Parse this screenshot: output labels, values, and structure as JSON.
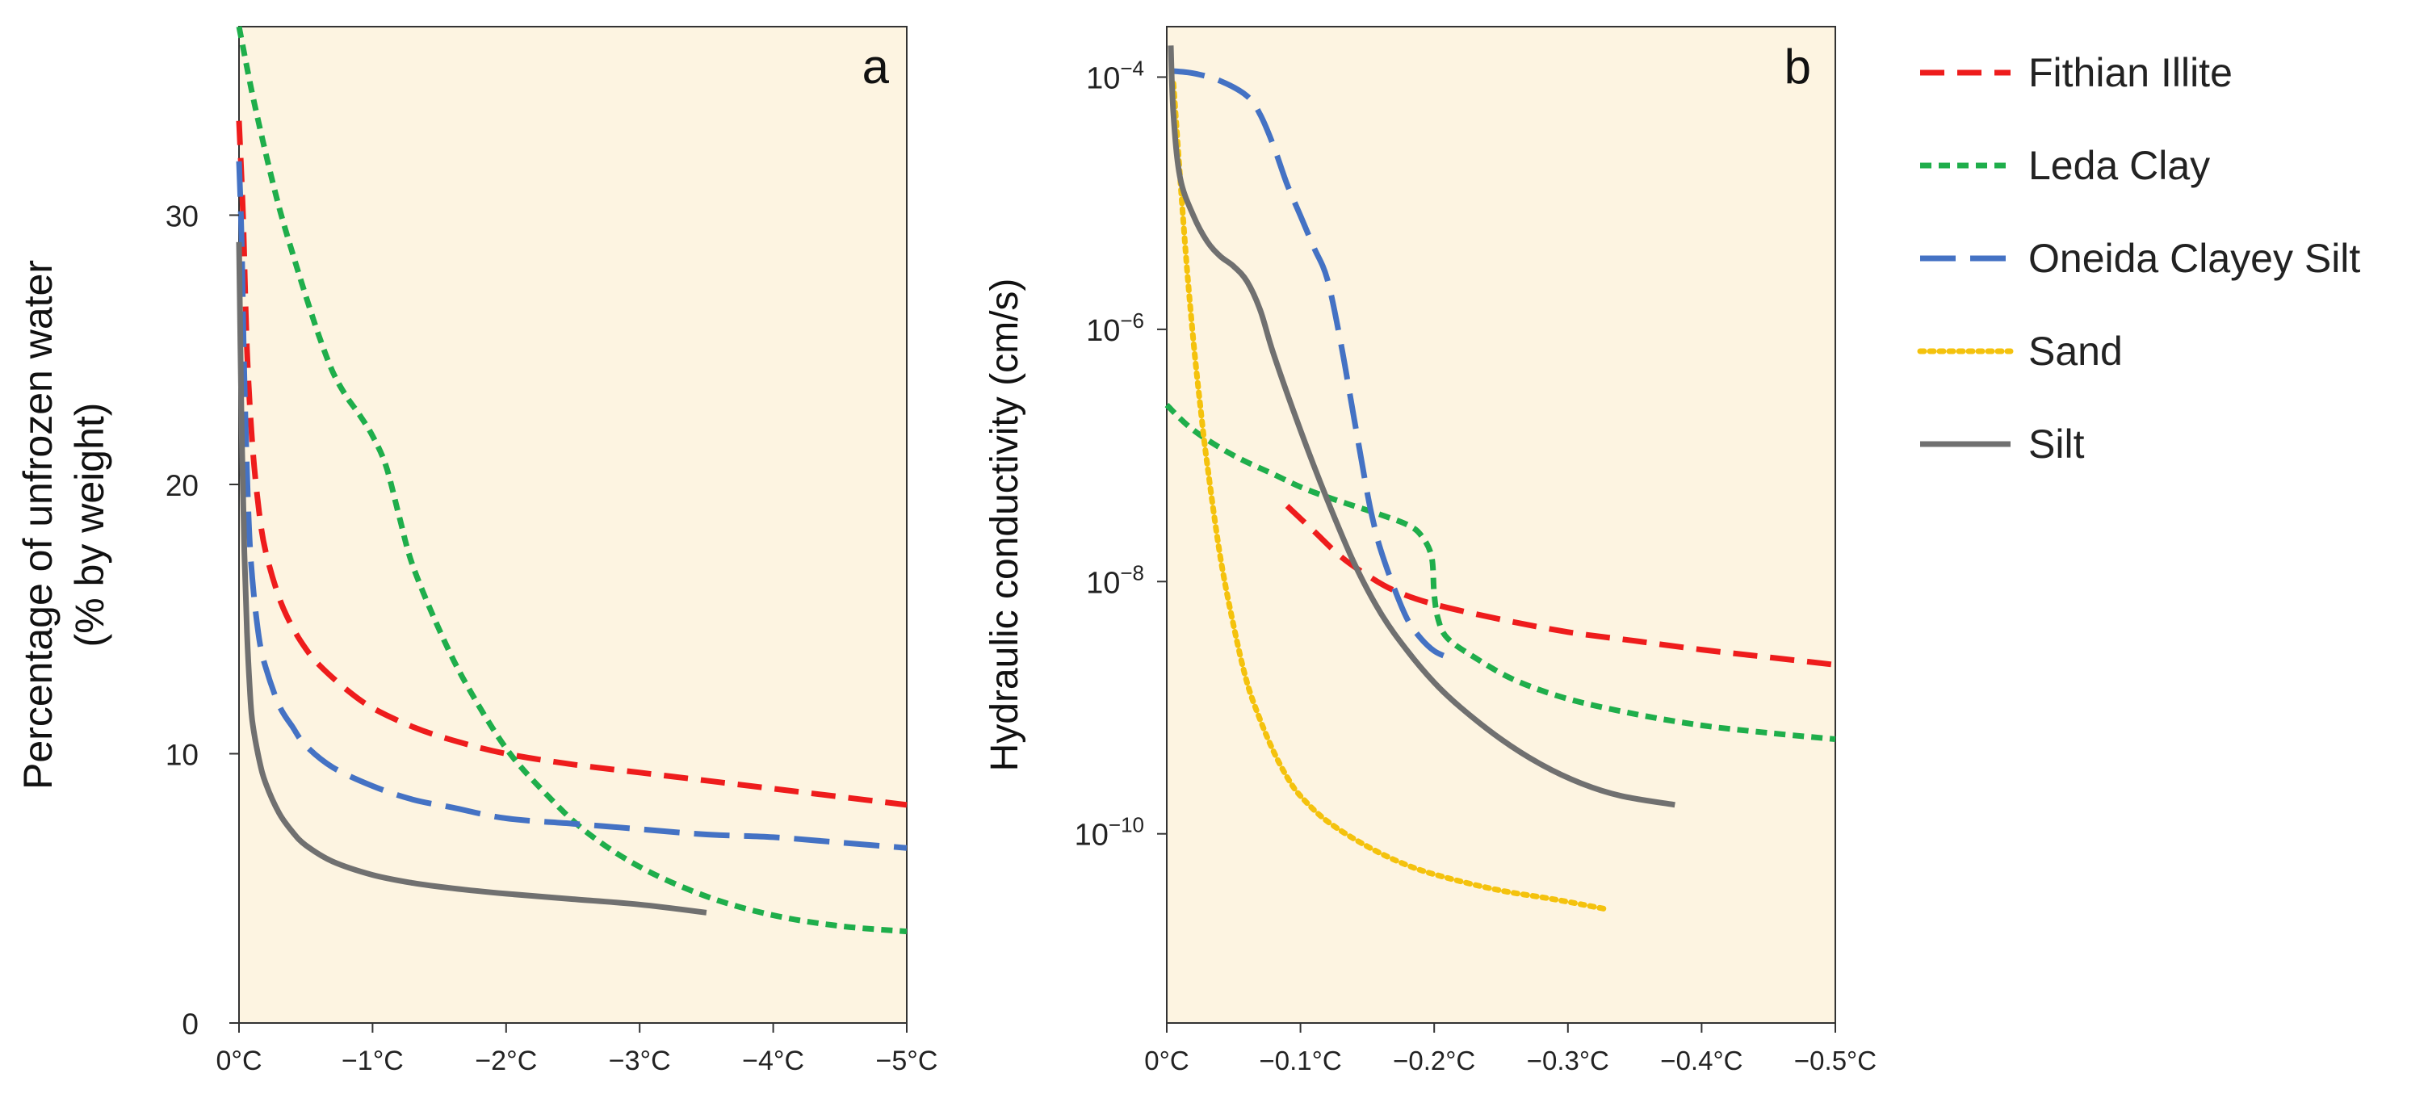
{
  "colors": {
    "background": "#fdf4e1",
    "axis": "#333333",
    "fithian": "#ee1c1c",
    "leda": "#1fae4b",
    "oneida": "#4472c4",
    "sand": "#f4c20d",
    "silt": "#707070"
  },
  "legend": {
    "items": [
      {
        "label": "Fithian Illite",
        "series": "fithian",
        "style": "dash"
      },
      {
        "label": "Leda Clay",
        "series": "leda",
        "style": "shortdash"
      },
      {
        "label": "Oneida Clayey Silt",
        "series": "oneida",
        "style": "longdash"
      },
      {
        "label": "Sand",
        "series": "sand",
        "style": "dot"
      },
      {
        "label": "Silt",
        "series": "silt",
        "style": "solid"
      }
    ]
  },
  "chart_data": [
    {
      "type": "line",
      "panel_label": "a",
      "title": "",
      "xlabel": "",
      "ylabel_lines": [
        "Percentage of unfrozen water",
        "(% by weight)"
      ],
      "xlim": [
        0,
        -5
      ],
      "ylim": [
        0,
        37
      ],
      "x_ticks": [
        0,
        -1,
        -2,
        -3,
        -4,
        -5
      ],
      "x_tick_labels": [
        "0°C",
        "−1°C",
        "−2°C",
        "−3°C",
        "−4°C",
        "−5°C"
      ],
      "y_ticks": [
        0,
        10,
        20,
        30
      ],
      "y_tick_labels": [
        "0",
        "10",
        "20",
        "30"
      ],
      "series": [
        {
          "name": "Fithian Illite",
          "key": "fithian",
          "x": [
            0,
            -0.03,
            -0.06,
            -0.1,
            -0.15,
            -0.2,
            -0.3,
            -0.4,
            -0.5,
            -0.6,
            -0.8,
            -1.0,
            -1.3,
            -1.6,
            -2.0,
            -2.5,
            -3.0,
            -3.5,
            -4.0,
            -4.5,
            -5.0
          ],
          "y": [
            33.5,
            30,
            25,
            21.5,
            19,
            17.5,
            15.8,
            14.7,
            13.9,
            13.3,
            12.4,
            11.7,
            11.0,
            10.5,
            10.0,
            9.6,
            9.3,
            9.0,
            8.7,
            8.4,
            8.1
          ]
        },
        {
          "name": "Leda Clay",
          "key": "leda",
          "x": [
            0,
            -0.1,
            -0.2,
            -0.3,
            -0.4,
            -0.5,
            -0.6,
            -0.7,
            -0.8,
            -0.9,
            -1.0,
            -1.1,
            -1.2,
            -1.3,
            -1.5,
            -1.7,
            -2.0,
            -2.3,
            -2.6,
            -3.0,
            -3.5,
            -4.0,
            -4.5,
            -5.0
          ],
          "y": [
            37,
            34.5,
            32.3,
            30.3,
            28.6,
            27,
            25.5,
            24.2,
            23.3,
            22.6,
            21.8,
            20.7,
            18.8,
            17.0,
            14.6,
            12.6,
            10.2,
            8.5,
            7.1,
            5.8,
            4.7,
            4.0,
            3.6,
            3.4
          ]
        },
        {
          "name": "Oneida Clayey Silt",
          "key": "oneida",
          "x": [
            0,
            -0.02,
            -0.04,
            -0.07,
            -0.1,
            -0.15,
            -0.2,
            -0.3,
            -0.4,
            -0.5,
            -0.7,
            -1.0,
            -1.3,
            -1.6,
            -2.0,
            -2.5,
            -3.0,
            -3.5,
            -4.0,
            -4.5,
            -5.0
          ],
          "y": [
            32,
            29,
            24,
            19,
            16.5,
            14.3,
            13.2,
            11.8,
            11.0,
            10.3,
            9.5,
            8.8,
            8.3,
            8.0,
            7.6,
            7.4,
            7.2,
            7.0,
            6.9,
            6.7,
            6.5
          ]
        },
        {
          "name": "Silt",
          "key": "silt",
          "x": [
            0,
            -0.02,
            -0.04,
            -0.06,
            -0.08,
            -0.1,
            -0.15,
            -0.2,
            -0.3,
            -0.4,
            -0.5,
            -0.7,
            -1.0,
            -1.3,
            -1.6,
            -2.0,
            -2.5,
            -3.0,
            -3.5
          ],
          "y": [
            29,
            22,
            17.5,
            14.5,
            12.5,
            11.2,
            9.8,
            8.9,
            7.8,
            7.1,
            6.6,
            6.0,
            5.5,
            5.2,
            5.0,
            4.8,
            4.6,
            4.4,
            4.1
          ]
        }
      ]
    },
    {
      "type": "line",
      "panel_label": "b",
      "title": "",
      "xlabel": "",
      "ylabel": "Hydraulic conductivity (cm/s)",
      "yscale": "log10",
      "xlim": [
        0,
        -0.5
      ],
      "ylim": [
        -11.5,
        -3.6
      ],
      "x_ticks": [
        0,
        -0.1,
        -0.2,
        -0.3,
        -0.4,
        -0.5
      ],
      "x_tick_labels": [
        "0°C",
        "−0.1°C",
        "−0.2°C",
        "−0.3°C",
        "−0.4°C",
        "−0.5°C"
      ],
      "y_ticks": [
        -4,
        -6,
        -8,
        -10
      ],
      "y_tick_labels": [
        {
          "base": "10",
          "exp": "−4"
        },
        {
          "base": "10",
          "exp": "−6"
        },
        {
          "base": "10",
          "exp": "−8"
        },
        {
          "base": "10",
          "exp": "−10"
        }
      ],
      "series": [
        {
          "name": "Fithian Illite",
          "key": "fithian",
          "x": [
            -0.09,
            -0.11,
            -0.13,
            -0.15,
            -0.17,
            -0.2,
            -0.25,
            -0.3,
            -0.35,
            -0.4,
            -0.45,
            -0.5
          ],
          "log10_y": [
            -7.4,
            -7.6,
            -7.8,
            -7.95,
            -8.07,
            -8.18,
            -8.3,
            -8.4,
            -8.47,
            -8.54,
            -8.6,
            -8.66
          ]
        },
        {
          "name": "Leda Clay",
          "key": "leda",
          "x": [
            0,
            -0.02,
            -0.05,
            -0.08,
            -0.1,
            -0.12,
            -0.14,
            -0.16,
            -0.18,
            -0.19,
            -0.198,
            -0.2,
            -0.203,
            -0.21,
            -0.23,
            -0.26,
            -0.3,
            -0.35,
            -0.4,
            -0.45,
            -0.5
          ],
          "log10_y": [
            -6.6,
            -6.8,
            -7.0,
            -7.15,
            -7.25,
            -7.33,
            -7.4,
            -7.47,
            -7.55,
            -7.63,
            -7.8,
            -8.1,
            -8.3,
            -8.45,
            -8.6,
            -8.78,
            -8.93,
            -9.05,
            -9.14,
            -9.2,
            -9.25
          ]
        },
        {
          "name": "Oneida Clayey Silt",
          "key": "oneida",
          "x": [
            -0.002,
            -0.02,
            -0.04,
            -0.06,
            -0.07,
            -0.08,
            -0.09,
            -0.1,
            -0.11,
            -0.12,
            -0.13,
            -0.14,
            -0.15,
            -0.155,
            -0.16,
            -0.17,
            -0.18,
            -0.19,
            -0.2,
            -0.21
          ],
          "log10_y": [
            -3.95,
            -3.97,
            -4.03,
            -4.15,
            -4.3,
            -4.55,
            -4.85,
            -5.1,
            -5.35,
            -5.6,
            -6.1,
            -6.7,
            -7.3,
            -7.55,
            -7.75,
            -8.05,
            -8.3,
            -8.45,
            -8.55,
            -8.6
          ]
        },
        {
          "name": "Sand",
          "key": "sand",
          "x": [
            -0.005,
            -0.01,
            -0.015,
            -0.02,
            -0.025,
            -0.03,
            -0.04,
            -0.05,
            -0.06,
            -0.07,
            -0.08,
            -0.09,
            -0.1,
            -0.12,
            -0.15,
            -0.18,
            -0.21,
            -0.25,
            -0.29,
            -0.33
          ],
          "log10_y": [
            -4.05,
            -4.8,
            -5.5,
            -6.1,
            -6.6,
            -7.05,
            -7.8,
            -8.35,
            -8.8,
            -9.1,
            -9.35,
            -9.55,
            -9.7,
            -9.9,
            -10.1,
            -10.25,
            -10.35,
            -10.45,
            -10.52,
            -10.6
          ]
        },
        {
          "name": "Silt",
          "key": "silt",
          "x": [
            -0.003,
            -0.005,
            -0.01,
            -0.02,
            -0.03,
            -0.04,
            -0.05,
            -0.06,
            -0.07,
            -0.08,
            -0.1,
            -0.12,
            -0.14,
            -0.16,
            -0.18,
            -0.2,
            -0.22,
            -0.25,
            -0.28,
            -0.31,
            -0.34,
            -0.38
          ],
          "log10_y": [
            -3.75,
            -4.3,
            -4.8,
            -5.1,
            -5.3,
            -5.42,
            -5.5,
            -5.62,
            -5.85,
            -6.2,
            -6.8,
            -7.35,
            -7.85,
            -8.25,
            -8.55,
            -8.8,
            -9.0,
            -9.25,
            -9.45,
            -9.6,
            -9.7,
            -9.77
          ]
        }
      ]
    }
  ]
}
